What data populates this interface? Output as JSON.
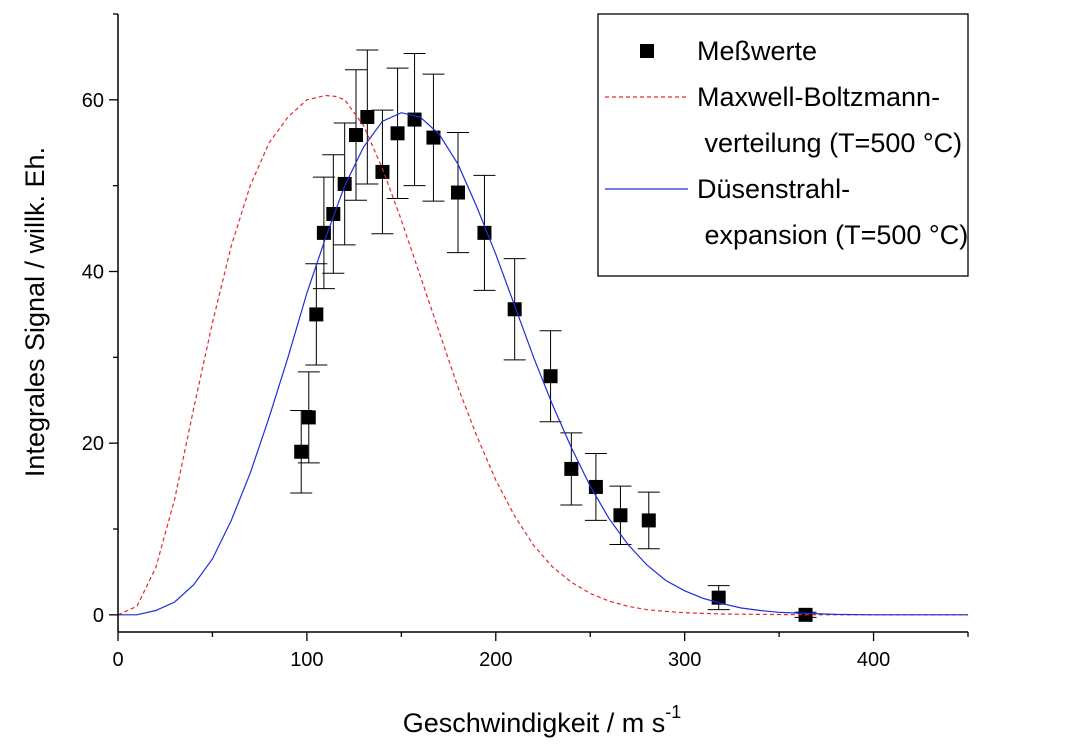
{
  "colors": {
    "measured": "#000000",
    "maxwell": "#e8262b",
    "nozzle": "#1c2fd6",
    "axes": "#000000",
    "background": "#ffffff"
  },
  "chart_data": {
    "type": "scatter",
    "title": "",
    "xlabel": "Geschwindigkeit / m s",
    "xlabel_superscript": "-1",
    "ylabel": "Integrales Signal / willk. Eh.",
    "xlim": [
      0,
      450
    ],
    "ylim": [
      -2,
      70
    ],
    "x_ticks": [
      0,
      100,
      200,
      300,
      400
    ],
    "y_ticks": [
      0,
      20,
      40,
      60
    ],
    "grid": false,
    "legend_position": "top-right",
    "legend": [
      {
        "lines": [
          "Meßwerte"
        ],
        "marker": "filled-square",
        "color_key": "measured"
      },
      {
        "lines": [
          "Maxwell-Boltzmann-",
          " verteilung (T=500 °C)"
        ],
        "marker": "dashed-line",
        "color_key": "maxwell"
      },
      {
        "lines": [
          "Düsenstrahl-",
          " expansion (T=500 °C)"
        ],
        "marker": "solid-line",
        "color_key": "nozzle"
      }
    ],
    "series": [
      {
        "name": "Meßwerte",
        "style": "filled-square-with-error-bars",
        "color_key": "measured",
        "points": [
          {
            "x": 97,
            "y": 19.0,
            "err": 4.8
          },
          {
            "x": 101,
            "y": 23.0,
            "err": 5.3
          },
          {
            "x": 105,
            "y": 35.0,
            "err": 5.9
          },
          {
            "x": 109,
            "y": 44.5,
            "err": 6.5
          },
          {
            "x": 114,
            "y": 46.7,
            "err": 6.9
          },
          {
            "x": 120,
            "y": 50.2,
            "err": 7.1
          },
          {
            "x": 126,
            "y": 55.9,
            "err": 7.6
          },
          {
            "x": 132,
            "y": 58.0,
            "err": 7.8
          },
          {
            "x": 140,
            "y": 51.6,
            "err": 7.2
          },
          {
            "x": 148,
            "y": 56.1,
            "err": 7.6
          },
          {
            "x": 157,
            "y": 57.7,
            "err": 7.7
          },
          {
            "x": 167,
            "y": 55.6,
            "err": 7.4
          },
          {
            "x": 180,
            "y": 49.2,
            "err": 7.0
          },
          {
            "x": 194,
            "y": 44.5,
            "err": 6.7
          },
          {
            "x": 210,
            "y": 35.6,
            "err": 5.9
          },
          {
            "x": 229,
            "y": 27.8,
            "err": 5.3
          },
          {
            "x": 240,
            "y": 17.0,
            "err": 4.2
          },
          {
            "x": 253,
            "y": 14.9,
            "err": 3.9
          },
          {
            "x": 266,
            "y": 11.6,
            "err": 3.4
          },
          {
            "x": 281,
            "y": 11.0,
            "err": 3.3
          },
          {
            "x": 318,
            "y": 2.0,
            "err": 1.4
          },
          {
            "x": 364,
            "y": 0.0,
            "err": 0.3
          }
        ]
      },
      {
        "name": "Maxwell-Boltzmann-verteilung (T=500 °C)",
        "style": "dashed-line",
        "color_key": "maxwell",
        "x": [
          0,
          10,
          20,
          30,
          40,
          50,
          60,
          70,
          80,
          90,
          100,
          110,
          115,
          120,
          130,
          140,
          150,
          160,
          170,
          180,
          190,
          200,
          210,
          220,
          230,
          240,
          250,
          260,
          270,
          280,
          290,
          300,
          320,
          340,
          360,
          380,
          400,
          450
        ],
        "y": [
          0,
          1.0,
          5.5,
          13.5,
          24,
          34,
          43,
          50,
          55,
          58,
          60,
          60.5,
          60.4,
          60,
          57,
          52,
          46,
          39.5,
          33,
          26.5,
          20.8,
          15.7,
          11.5,
          8.1,
          5.6,
          3.8,
          2.5,
          1.6,
          1.0,
          0.6,
          0.4,
          0.25,
          0.1,
          0.05,
          0.02,
          0,
          0,
          0
        ]
      },
      {
        "name": "Düsenstrahlexpansion (T=500 °C)",
        "style": "solid-line",
        "color_key": "nozzle",
        "x": [
          0,
          10,
          20,
          30,
          40,
          50,
          60,
          70,
          80,
          90,
          100,
          110,
          120,
          130,
          140,
          150,
          160,
          170,
          180,
          190,
          200,
          210,
          220,
          230,
          240,
          250,
          260,
          270,
          280,
          290,
          300,
          310,
          320,
          330,
          340,
          350,
          360,
          380,
          400,
          420,
          450
        ],
        "y": [
          0,
          0,
          0.5,
          1.5,
          3.5,
          6.5,
          11,
          16.5,
          23,
          30,
          37.5,
          44,
          50,
          54.5,
          57.5,
          58.5,
          58,
          56,
          52.5,
          47.5,
          42,
          36,
          30,
          24.5,
          19.5,
          15,
          11.2,
          8.2,
          5.8,
          4.0,
          2.8,
          1.9,
          1.3,
          0.8,
          0.5,
          0.3,
          0.2,
          0.05,
          0,
          0,
          0
        ]
      }
    ]
  }
}
